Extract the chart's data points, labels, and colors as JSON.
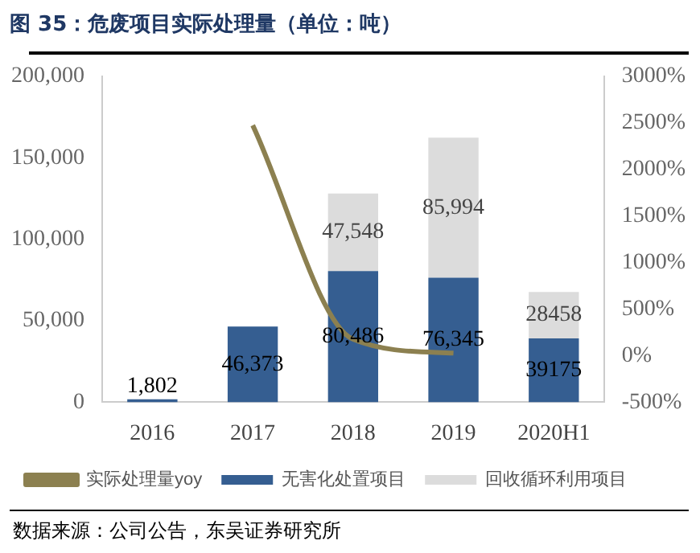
{
  "chart_data": {
    "type": "bar",
    "title": "图 35：危废项目实际处理量（单位：吨）",
    "categories": [
      "2016",
      "2017",
      "2018",
      "2019",
      "2020H1"
    ],
    "stacked": true,
    "series": [
      {
        "name": "无害化处置项目",
        "color": "#355e91",
        "values": [
          1802,
          46373,
          80486,
          76345,
          39175
        ],
        "value_labels": [
          "1,802",
          "46,373",
          "80,486",
          "76,345",
          "39175"
        ]
      },
      {
        "name": "回收循环利用项目",
        "color": "#dcdcdc",
        "values": [
          null,
          null,
          47548,
          85994,
          28458
        ],
        "value_labels": [
          null,
          null,
          "47,548",
          "85,994",
          "28458"
        ]
      },
      {
        "name": "实际处理量yoy",
        "type": "line",
        "axis": "y2",
        "color": "#8c8050",
        "values": [
          null,
          2473,
          176,
          27,
          null
        ]
      }
    ],
    "ylim": [
      0,
      200000
    ],
    "yticks": [
      {
        "value": 0,
        "label": "0"
      },
      {
        "value": 50000,
        "label": "50,000"
      },
      {
        "value": 100000,
        "label": "100,000"
      },
      {
        "value": 150000,
        "label": "150,000"
      },
      {
        "value": 200000,
        "label": "200,000"
      }
    ],
    "y2lim": [
      -500,
      3000
    ],
    "y2ticks": [
      {
        "value": -500,
        "label": "-500%"
      },
      {
        "value": 0,
        "label": "0%"
      },
      {
        "value": 500,
        "label": "500%"
      },
      {
        "value": 1000,
        "label": "1000%"
      },
      {
        "value": 1500,
        "label": "1500%"
      },
      {
        "value": 2000,
        "label": "2000%"
      },
      {
        "value": 2500,
        "label": "2500%"
      },
      {
        "value": 3000,
        "label": "3000%"
      }
    ],
    "grid": false,
    "legend": "bottom",
    "marker": "none",
    "annotations": [
      "数据来源：公司公告，东吴证券研究所"
    ]
  }
}
